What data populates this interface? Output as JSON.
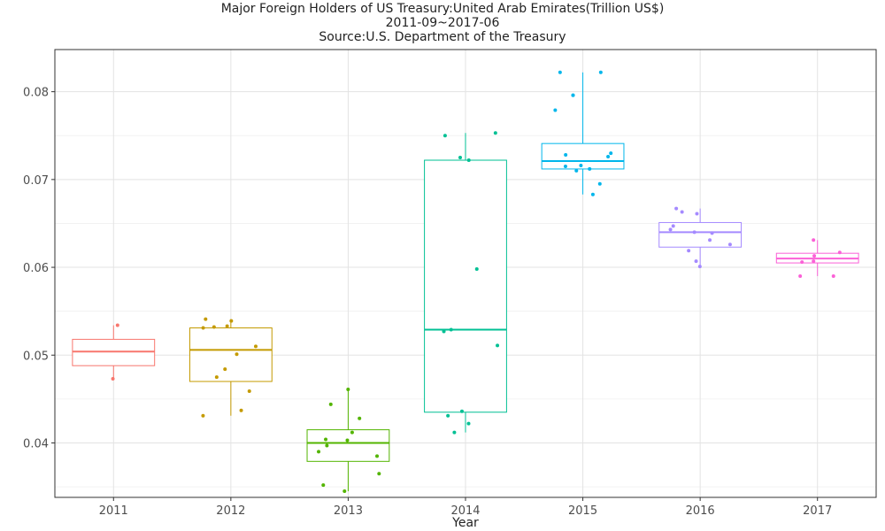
{
  "chart_data": {
    "type": "box",
    "title": "Major Foreign Holders of US Treasury:United Arab Emirates(Trillion US$)",
    "subtitle": "2011-09~2017-06",
    "source": "Source:U.S. Department of the Treasury",
    "xlabel": "Year",
    "ylabel": "",
    "ylim": [
      0.0338,
      0.0848
    ],
    "yticks": [
      0.04,
      0.05,
      0.06,
      0.07,
      0.08
    ],
    "ytick_labels": [
      "0.04",
      "0.05",
      "0.06",
      "0.07",
      "0.08"
    ],
    "grid": true,
    "legend": false,
    "categories": [
      "2011",
      "2012",
      "2013",
      "2014",
      "2015",
      "2016",
      "2017"
    ],
    "colors": [
      "#F8766D",
      "#C49A00",
      "#53B400",
      "#00C094",
      "#00B6EB",
      "#A58AFF",
      "#FB61D7"
    ],
    "boxes": [
      {
        "year": "2011",
        "whisker_low": 0.0473,
        "q1": 0.0488,
        "median": 0.0504,
        "q3": 0.0518,
        "whisker_high": 0.0534
      },
      {
        "year": "2012",
        "whisker_low": 0.0431,
        "q1": 0.047,
        "median": 0.0506,
        "q3": 0.0531,
        "whisker_high": 0.0541
      },
      {
        "year": "2013",
        "whisker_low": 0.0345,
        "q1": 0.0379,
        "median": 0.04,
        "q3": 0.0415,
        "whisker_high": 0.0461
      },
      {
        "year": "2014",
        "whisker_low": 0.0412,
        "q1": 0.0435,
        "median": 0.0529,
        "q3": 0.0722,
        "whisker_high": 0.0753
      },
      {
        "year": "2015",
        "whisker_low": 0.0683,
        "q1": 0.0712,
        "median": 0.0721,
        "q3": 0.0741,
        "whisker_high": 0.0822
      },
      {
        "year": "2016",
        "whisker_low": 0.0601,
        "q1": 0.0623,
        "median": 0.064,
        "q3": 0.0651,
        "whisker_high": 0.0667
      },
      {
        "year": "2017",
        "whisker_low": 0.059,
        "q1": 0.0605,
        "median": 0.061,
        "q3": 0.0616,
        "whisker_high": 0.0631
      }
    ],
    "points": [
      {
        "year": "2011",
        "values": [
          0.0473,
          0.0534
        ]
      },
      {
        "year": "2012",
        "values": [
          0.0541,
          0.0532,
          0.0533,
          0.0539,
          0.0531,
          0.051,
          0.0501,
          0.0484,
          0.0475,
          0.0459,
          0.0437,
          0.0431
        ]
      },
      {
        "year": "2013",
        "values": [
          0.0461,
          0.0444,
          0.0428,
          0.0404,
          0.0412,
          0.0403,
          0.0397,
          0.039,
          0.0385,
          0.0365,
          0.0352,
          0.0345
        ]
      },
      {
        "year": "2014",
        "values": [
          0.0753,
          0.075,
          0.0725,
          0.0722,
          0.0598,
          0.0529,
          0.0527,
          0.0511,
          0.0436,
          0.0431,
          0.0422,
          0.0412
        ]
      },
      {
        "year": "2015",
        "values": [
          0.0822,
          0.0822,
          0.0796,
          0.0796,
          0.0779,
          0.073,
          0.0728,
          0.0726,
          0.0716,
          0.0715,
          0.0712,
          0.071,
          0.0695,
          0.0683
        ]
      },
      {
        "year": "2016",
        "values": [
          0.0667,
          0.0663,
          0.0661,
          0.0647,
          0.0643,
          0.064,
          0.0639,
          0.0631,
          0.0626,
          0.0619,
          0.0607,
          0.0601
        ]
      },
      {
        "year": "2017",
        "values": [
          0.0631,
          0.0617,
          0.0613,
          0.0607,
          0.0606,
          0.059,
          0.059
        ]
      }
    ]
  }
}
